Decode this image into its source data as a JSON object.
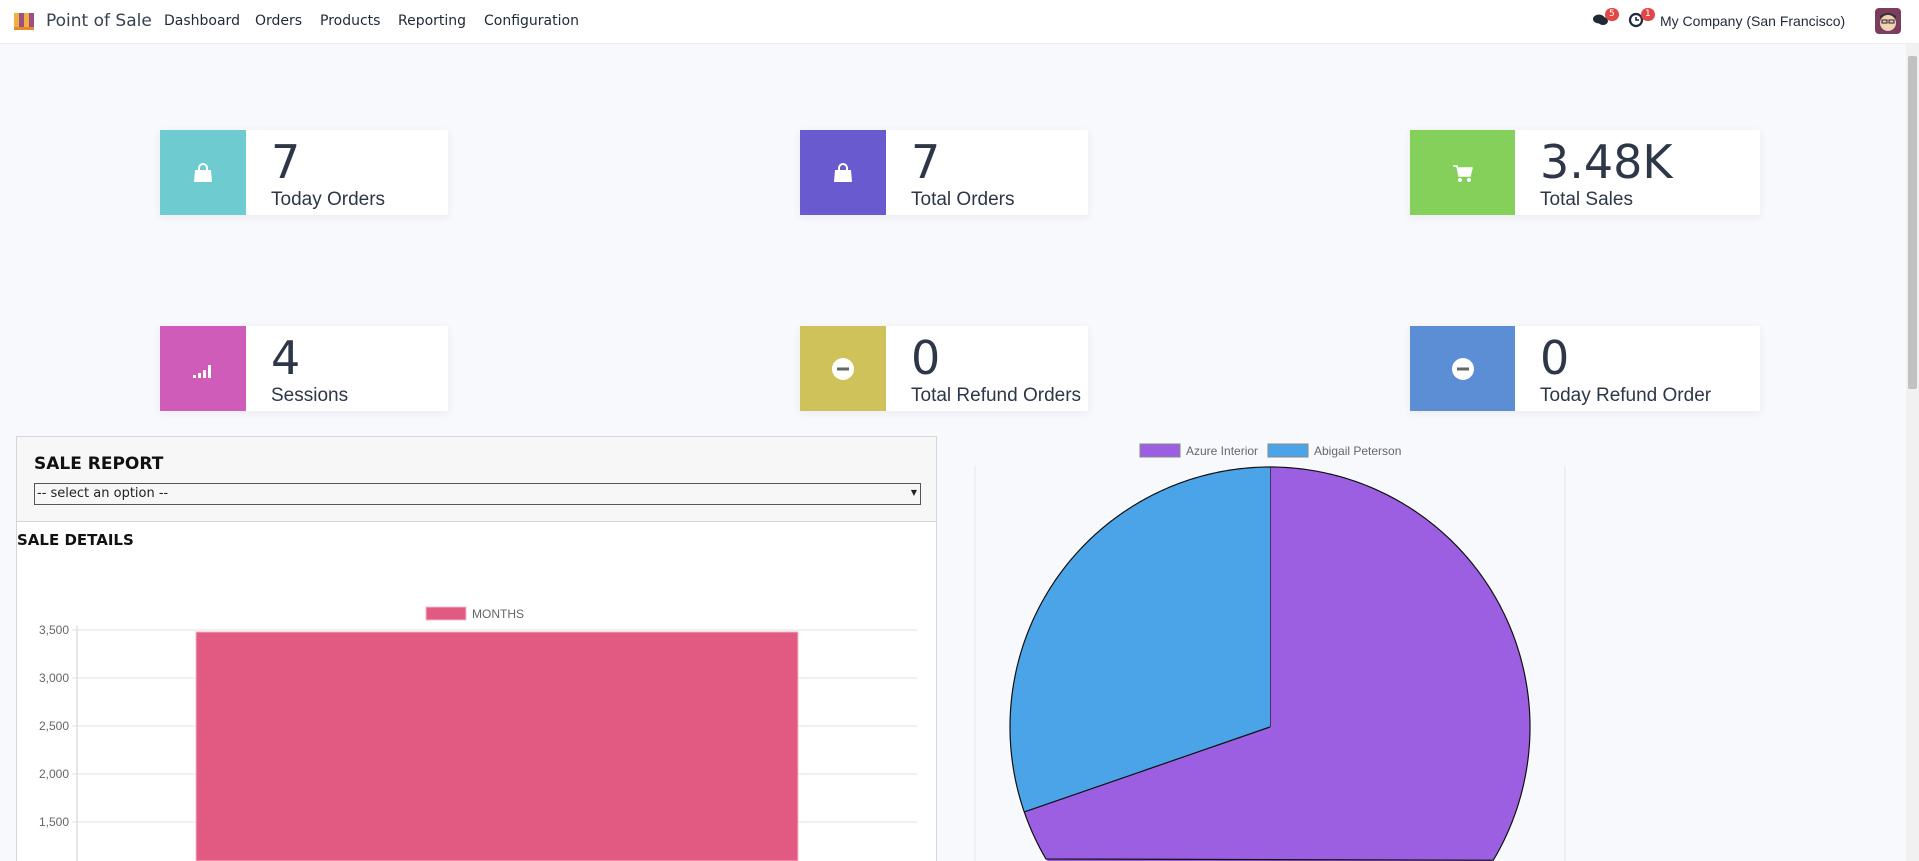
{
  "nav": {
    "app_title": "Point of Sale",
    "menu": [
      "Dashboard",
      "Orders",
      "Products",
      "Reporting",
      "Configuration"
    ],
    "messages_count": "5",
    "activities_count": "1",
    "company": "My Company (San Francisco)"
  },
  "cards": [
    {
      "value": "7",
      "label": "Today Orders",
      "icon": "shopping-bag-icon",
      "color": "#6ecbcf"
    },
    {
      "value": "7",
      "label": "Total Orders",
      "icon": "shopping-bag-icon",
      "color": "#6a5ad0"
    },
    {
      "value": "3.48K",
      "label": "Total Sales",
      "icon": "shopping-cart-icon",
      "color": "#85d05a"
    },
    {
      "value": "4",
      "label": "Sessions",
      "icon": "signal-bars-icon",
      "color": "#d05cba"
    },
    {
      "value": "0",
      "label": "Total Refund Orders",
      "icon": "minus-circle-icon",
      "color": "#cfc25a"
    },
    {
      "value": "0",
      "label": "Today Refund Order",
      "icon": "minus-circle-icon",
      "color": "#5b8ed4"
    }
  ],
  "report": {
    "title": "SALE REPORT",
    "select_value": "-- select an option --",
    "details_title": "SALE DETAILS"
  },
  "chart_data": [
    {
      "type": "bar",
      "series": [
        {
          "name": "MONTHS",
          "values": [
            3480
          ],
          "color": "#e25a82"
        }
      ],
      "categories": [
        ""
      ],
      "yticks": [
        "1,500",
        "2,000",
        "2,500",
        "3,000",
        "3,500"
      ],
      "ylim": [
        0,
        3500
      ],
      "grid": true,
      "legend": "top"
    },
    {
      "type": "pie",
      "labels": [
        "Azure Interior",
        "Abigail Peterson"
      ],
      "values": [
        69.7,
        30.3
      ],
      "colors": [
        "#9c5fe2",
        "#4ba3e8"
      ],
      "legend": "top"
    }
  ]
}
